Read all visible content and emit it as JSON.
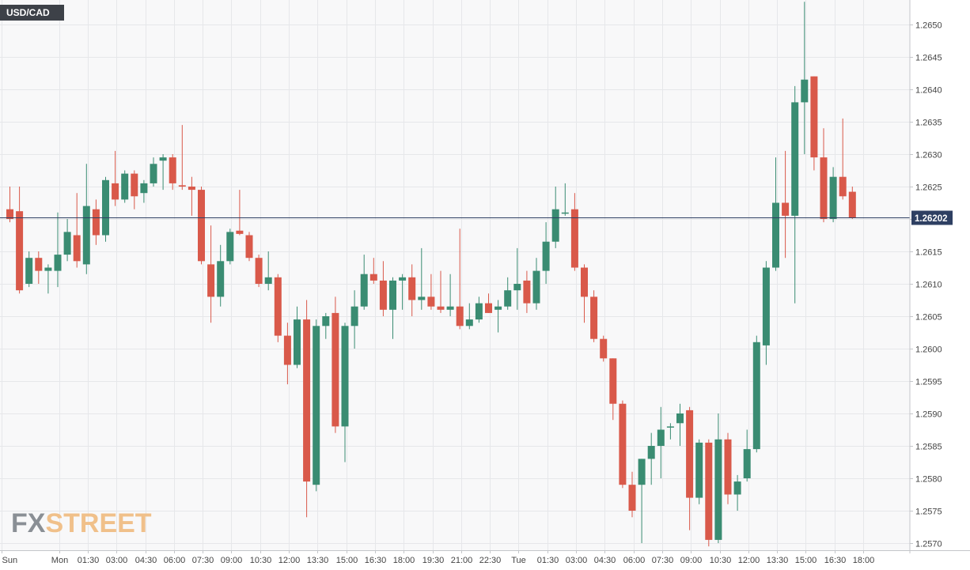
{
  "chart_title": "USD/CAD",
  "watermark": {
    "part1": "FX",
    "part2": "STREET"
  },
  "colors": {
    "up": "#3a8c72",
    "down": "#d9594a",
    "price_line": "#2e3f62",
    "grid": "#e6e7ea",
    "plot_bg": "#f8f8f9",
    "axis_text": "#444444"
  },
  "chart_data": {
    "type": "candlestick",
    "title": "USD/CAD",
    "y_axis_position": "right",
    "ylim": [
      1.2568,
      1.2654
    ],
    "yticks": [
      "1.2650",
      "1.2645",
      "1.2640",
      "1.2635",
      "1.2630",
      "1.2625",
      "1.2620",
      "1.2615",
      "1.2610",
      "1.2605",
      "1.2600",
      "1.2595",
      "1.2590",
      "1.2585",
      "1.2580",
      "1.2575",
      "1.2570"
    ],
    "xticks": [
      {
        "label": "Sun",
        "index": 0
      },
      {
        "label": "Mon",
        "index": 6
      },
      {
        "label": "01:30",
        "index": 9
      },
      {
        "label": "03:00",
        "index": 12
      },
      {
        "label": "04:30",
        "index": 15
      },
      {
        "label": "06:00",
        "index": 18
      },
      {
        "label": "07:30",
        "index": 21
      },
      {
        "label": "09:00",
        "index": 24
      },
      {
        "label": "10:30",
        "index": 27
      },
      {
        "label": "12:00",
        "index": 30
      },
      {
        "label": "13:30",
        "index": 33
      },
      {
        "label": "15:00",
        "index": 36
      },
      {
        "label": "16:30",
        "index": 39
      },
      {
        "label": "18:00",
        "index": 42
      },
      {
        "label": "19:30",
        "index": 45
      },
      {
        "label": "21:00",
        "index": 48
      },
      {
        "label": "22:30",
        "index": 51
      },
      {
        "label": "Tue",
        "index": 54
      },
      {
        "label": "01:30",
        "index": 57
      },
      {
        "label": "03:00",
        "index": 60
      },
      {
        "label": "04:30",
        "index": 63
      },
      {
        "label": "06:00",
        "index": 66
      },
      {
        "label": "07:30",
        "index": 69
      },
      {
        "label": "09:00",
        "index": 72
      },
      {
        "label": "10:30",
        "index": 75
      },
      {
        "label": "12:00",
        "index": 78
      },
      {
        "label": "13:30",
        "index": 81
      },
      {
        "label": "15:00",
        "index": 84
      },
      {
        "label": "16:30",
        "index": 87
      },
      {
        "label": "18:00",
        "index": 90
      }
    ],
    "current_price": "1.26202",
    "candles": [
      {
        "o": 1.26215,
        "h": 1.2625,
        "l": 1.26195,
        "c": 1.262
      },
      {
        "o": 1.26212,
        "h": 1.2625,
        "l": 1.26085,
        "c": 1.2609
      },
      {
        "o": 1.261,
        "h": 1.2615,
        "l": 1.26095,
        "c": 1.2614
      },
      {
        "o": 1.2614,
        "h": 1.2615,
        "l": 1.261,
        "c": 1.2612
      },
      {
        "o": 1.2612,
        "h": 1.2613,
        "l": 1.26085,
        "c": 1.26125
      },
      {
        "o": 1.2612,
        "h": 1.2621,
        "l": 1.26095,
        "c": 1.26145
      },
      {
        "o": 1.26145,
        "h": 1.262,
        "l": 1.26135,
        "c": 1.2618
      },
      {
        "o": 1.26175,
        "h": 1.2624,
        "l": 1.26125,
        "c": 1.26135
      },
      {
        "o": 1.2613,
        "h": 1.26285,
        "l": 1.26115,
        "c": 1.2622
      },
      {
        "o": 1.26215,
        "h": 1.2623,
        "l": 1.2616,
        "c": 1.26175
      },
      {
        "o": 1.26175,
        "h": 1.26265,
        "l": 1.26165,
        "c": 1.2626
      },
      {
        "o": 1.26255,
        "h": 1.26305,
        "l": 1.2622,
        "c": 1.2623
      },
      {
        "o": 1.2623,
        "h": 1.26275,
        "l": 1.26225,
        "c": 1.2627
      },
      {
        "o": 1.2627,
        "h": 1.26275,
        "l": 1.26215,
        "c": 1.26235
      },
      {
        "o": 1.2624,
        "h": 1.2626,
        "l": 1.26225,
        "c": 1.26255
      },
      {
        "o": 1.26255,
        "h": 1.26295,
        "l": 1.2625,
        "c": 1.26285
      },
      {
        "o": 1.2629,
        "h": 1.263,
        "l": 1.26245,
        "c": 1.26295
      },
      {
        "o": 1.26295,
        "h": 1.263,
        "l": 1.26245,
        "c": 1.26255
      },
      {
        "o": 1.26252,
        "h": 1.26345,
        "l": 1.26245,
        "c": 1.2625
      },
      {
        "o": 1.2625,
        "h": 1.26265,
        "l": 1.26205,
        "c": 1.26245
      },
      {
        "o": 1.26245,
        "h": 1.2625,
        "l": 1.2613,
        "c": 1.26135
      },
      {
        "o": 1.2613,
        "h": 1.2619,
        "l": 1.2604,
        "c": 1.2608
      },
      {
        "o": 1.2608,
        "h": 1.2616,
        "l": 1.26065,
        "c": 1.26135
      },
      {
        "o": 1.26135,
        "h": 1.26185,
        "l": 1.2613,
        "c": 1.2618
      },
      {
        "o": 1.26182,
        "h": 1.26245,
        "l": 1.26175,
        "c": 1.26177
      },
      {
        "o": 1.26175,
        "h": 1.2618,
        "l": 1.26135,
        "c": 1.2614
      },
      {
        "o": 1.2614,
        "h": 1.26145,
        "l": 1.26095,
        "c": 1.261
      },
      {
        "o": 1.261,
        "h": 1.2615,
        "l": 1.2609,
        "c": 1.2611
      },
      {
        "o": 1.2611,
        "h": 1.26115,
        "l": 1.2601,
        "c": 1.2602
      },
      {
        "o": 1.2602,
        "h": 1.2604,
        "l": 1.25945,
        "c": 1.25975
      },
      {
        "o": 1.25975,
        "h": 1.26065,
        "l": 1.2597,
        "c": 1.26045
      },
      {
        "o": 1.26045,
        "h": 1.26075,
        "l": 1.2574,
        "c": 1.25795
      },
      {
        "o": 1.2579,
        "h": 1.26045,
        "l": 1.2578,
        "c": 1.26035
      },
      {
        "o": 1.26035,
        "h": 1.26055,
        "l": 1.26015,
        "c": 1.2605
      },
      {
        "o": 1.26055,
        "h": 1.2608,
        "l": 1.2587,
        "c": 1.2588
      },
      {
        "o": 1.2588,
        "h": 1.2604,
        "l": 1.25825,
        "c": 1.26035
      },
      {
        "o": 1.26035,
        "h": 1.2609,
        "l": 1.26,
        "c": 1.26065
      },
      {
        "o": 1.26065,
        "h": 1.26145,
        "l": 1.2606,
        "c": 1.26115
      },
      {
        "o": 1.26115,
        "h": 1.2614,
        "l": 1.261,
        "c": 1.26105
      },
      {
        "o": 1.26105,
        "h": 1.26135,
        "l": 1.2605,
        "c": 1.2606
      },
      {
        "o": 1.2606,
        "h": 1.2611,
        "l": 1.26015,
        "c": 1.26105
      },
      {
        "o": 1.26105,
        "h": 1.26115,
        "l": 1.2606,
        "c": 1.2611
      },
      {
        "o": 1.2611,
        "h": 1.2613,
        "l": 1.2605,
        "c": 1.26075
      },
      {
        "o": 1.26075,
        "h": 1.26155,
        "l": 1.2606,
        "c": 1.2608
      },
      {
        "o": 1.2608,
        "h": 1.26115,
        "l": 1.2606,
        "c": 1.26065
      },
      {
        "o": 1.26065,
        "h": 1.2612,
        "l": 1.26055,
        "c": 1.2606
      },
      {
        "o": 1.2606,
        "h": 1.26115,
        "l": 1.2605,
        "c": 1.26065
      },
      {
        "o": 1.26065,
        "h": 1.26185,
        "l": 1.2603,
        "c": 1.26035
      },
      {
        "o": 1.26035,
        "h": 1.2607,
        "l": 1.2603,
        "c": 1.26045
      },
      {
        "o": 1.26045,
        "h": 1.2608,
        "l": 1.2604,
        "c": 1.2607
      },
      {
        "o": 1.2607,
        "h": 1.26085,
        "l": 1.26055,
        "c": 1.26055
      },
      {
        "o": 1.2606,
        "h": 1.26075,
        "l": 1.26025,
        "c": 1.26065
      },
      {
        "o": 1.26065,
        "h": 1.2611,
        "l": 1.2606,
        "c": 1.2609
      },
      {
        "o": 1.2609,
        "h": 1.26155,
        "l": 1.2606,
        "c": 1.261
      },
      {
        "o": 1.26105,
        "h": 1.2612,
        "l": 1.26055,
        "c": 1.2607
      },
      {
        "o": 1.2607,
        "h": 1.2614,
        "l": 1.2606,
        "c": 1.2612
      },
      {
        "o": 1.2612,
        "h": 1.26195,
        "l": 1.261,
        "c": 1.26165
      },
      {
        "o": 1.26165,
        "h": 1.2625,
        "l": 1.26155,
        "c": 1.26215
      },
      {
        "o": 1.2621,
        "h": 1.26255,
        "l": 1.26205,
        "c": 1.2621
      },
      {
        "o": 1.26215,
        "h": 1.2624,
        "l": 1.2612,
        "c": 1.26125
      },
      {
        "o": 1.26125,
        "h": 1.2613,
        "l": 1.2604,
        "c": 1.2608
      },
      {
        "o": 1.2608,
        "h": 1.2609,
        "l": 1.2601,
        "c": 1.26015
      },
      {
        "o": 1.26015,
        "h": 1.2602,
        "l": 1.2598,
        "c": 1.25985
      },
      {
        "o": 1.25985,
        "h": 1.25985,
        "l": 1.2589,
        "c": 1.25915
      },
      {
        "o": 1.25915,
        "h": 1.2592,
        "l": 1.25785,
        "c": 1.2579
      },
      {
        "o": 1.2579,
        "h": 1.2581,
        "l": 1.2574,
        "c": 1.2575
      },
      {
        "o": 1.2579,
        "h": 1.2583,
        "l": 1.257,
        "c": 1.2583
      },
      {
        "o": 1.2583,
        "h": 1.2587,
        "l": 1.2579,
        "c": 1.2585
      },
      {
        "o": 1.2585,
        "h": 1.2591,
        "l": 1.258,
        "c": 1.25875
      },
      {
        "o": 1.2588,
        "h": 1.25885,
        "l": 1.2586,
        "c": 1.2588
      },
      {
        "o": 1.25885,
        "h": 1.25915,
        "l": 1.2585,
        "c": 1.259
      },
      {
        "o": 1.25905,
        "h": 1.2591,
        "l": 1.2572,
        "c": 1.2577
      },
      {
        "o": 1.2577,
        "h": 1.2586,
        "l": 1.2576,
        "c": 1.25855
      },
      {
        "o": 1.25855,
        "h": 1.2586,
        "l": 1.25695,
        "c": 1.25705
      },
      {
        "o": 1.25705,
        "h": 1.259,
        "l": 1.257,
        "c": 1.2586
      },
      {
        "o": 1.2586,
        "h": 1.2587,
        "l": 1.2576,
        "c": 1.25775
      },
      {
        "o": 1.25775,
        "h": 1.25805,
        "l": 1.2575,
        "c": 1.25795
      },
      {
        "o": 1.258,
        "h": 1.25875,
        "l": 1.25795,
        "c": 1.25845
      },
      {
        "o": 1.25845,
        "h": 1.2602,
        "l": 1.2584,
        "c": 1.2601
      },
      {
        "o": 1.26005,
        "h": 1.26135,
        "l": 1.25975,
        "c": 1.26125
      },
      {
        "o": 1.26125,
        "h": 1.26295,
        "l": 1.2612,
        "c": 1.26225
      },
      {
        "o": 1.26225,
        "h": 1.26305,
        "l": 1.2614,
        "c": 1.26205
      },
      {
        "o": 1.26205,
        "h": 1.26405,
        "l": 1.2607,
        "c": 1.2638
      },
      {
        "o": 1.2638,
        "h": 1.26535,
        "l": 1.263,
        "c": 1.26415
      },
      {
        "o": 1.2642,
        "h": 1.2642,
        "l": 1.26275,
        "c": 1.26295
      },
      {
        "o": 1.26295,
        "h": 1.2634,
        "l": 1.26195,
        "c": 1.262
      },
      {
        "o": 1.262,
        "h": 1.2628,
        "l": 1.26195,
        "c": 1.26265
      },
      {
        "o": 1.26265,
        "h": 1.26355,
        "l": 1.2623,
        "c": 1.26235
      },
      {
        "o": 1.26242,
        "h": 1.2625,
        "l": 1.262,
        "c": 1.26202
      }
    ]
  }
}
